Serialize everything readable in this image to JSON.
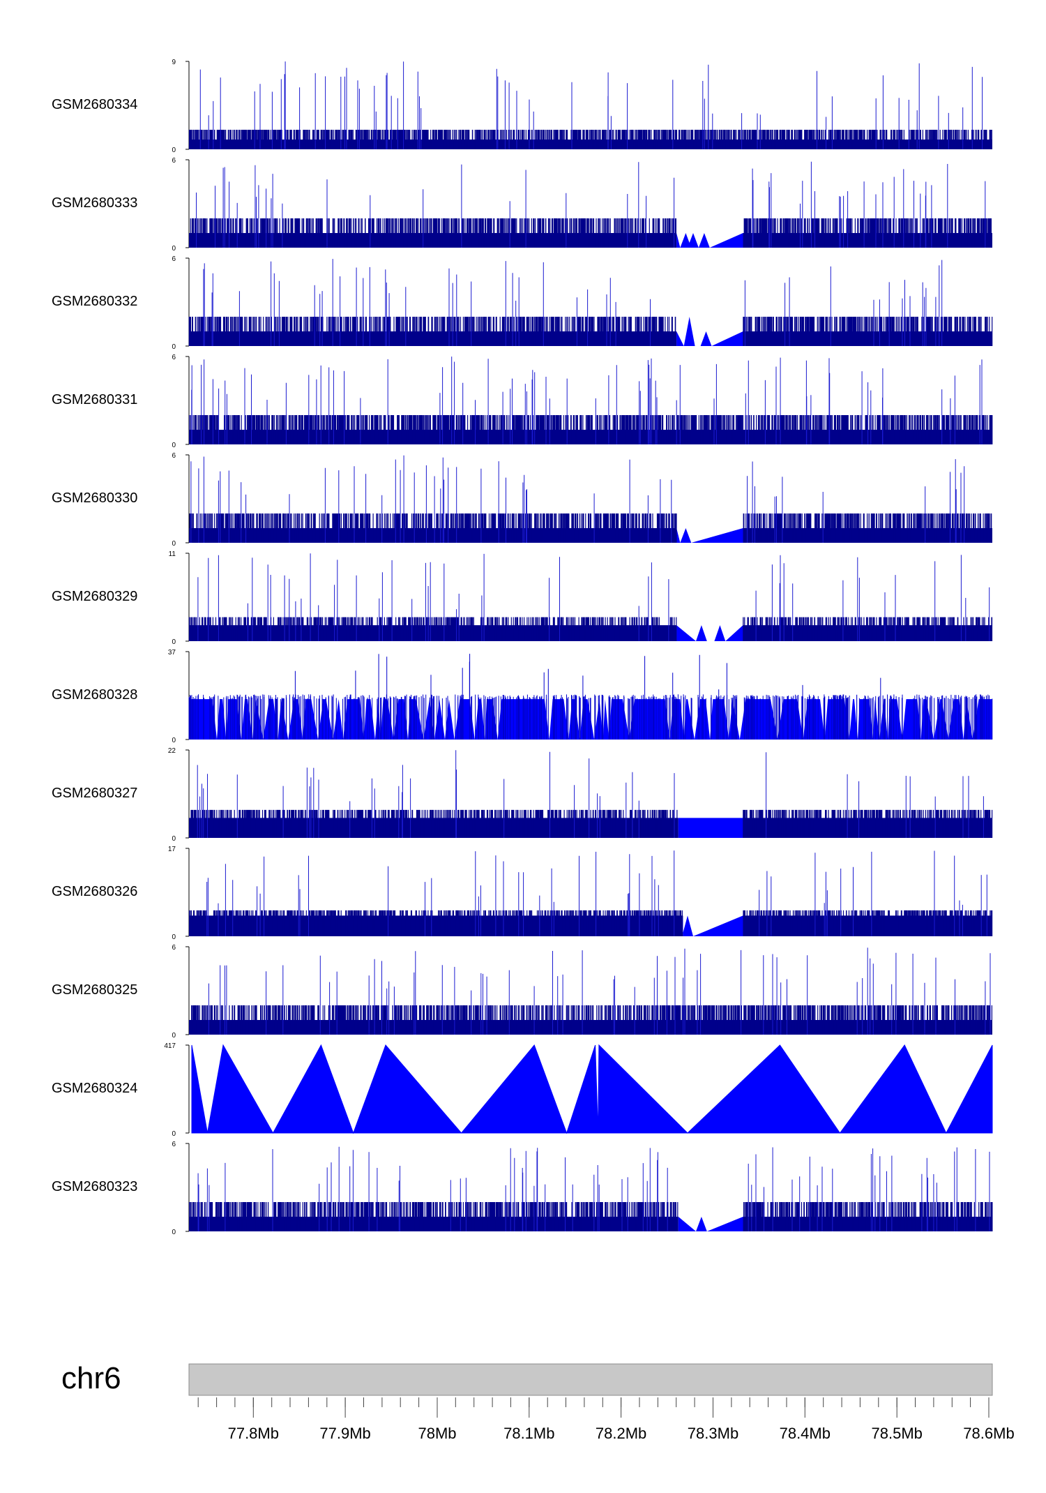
{
  "chart_data": {
    "type": "area",
    "title": "",
    "chromosome": "chr6",
    "x_unit": "Mb",
    "xlim": [
      77.73,
      78.6
    ],
    "x_ticks": [
      {
        "value": 77.8,
        "label": "77.8Mb"
      },
      {
        "value": 77.9,
        "label": "77.9Mb"
      },
      {
        "value": 78.0,
        "label": "78Mb"
      },
      {
        "value": 78.1,
        "label": "78.1Mb"
      },
      {
        "value": 78.2,
        "label": "78.2Mb"
      },
      {
        "value": 78.3,
        "label": "78.3Mb"
      },
      {
        "value": 78.4,
        "label": "78.4Mb"
      },
      {
        "value": 78.5,
        "label": "78.5Mb"
      },
      {
        "value": 78.6,
        "label": "78.6Mb"
      }
    ],
    "minor_tick_step": 0.02,
    "series": [
      {
        "name": "GSM2680334",
        "ylim": [
          0,
          9
        ],
        "y_labels": [
          "9",
          "0"
        ],
        "style": "dense",
        "base": 1,
        "mid": 2,
        "frac_mid": 0.55,
        "gaps": []
      },
      {
        "name": "GSM2680333",
        "ylim": [
          0,
          6
        ],
        "y_labels": [
          "6",
          "0"
        ],
        "style": "dense",
        "base": 1,
        "mid": 2,
        "frac_mid": 0.5,
        "gaps": [
          {
            "start": 78.258,
            "end": 78.33,
            "peaks": [
              [
                78.268,
                1
              ],
              [
                78.276,
                1
              ],
              [
                78.288,
                1
              ]
            ]
          }
        ]
      },
      {
        "name": "GSM2680332",
        "ylim": [
          0,
          6
        ],
        "y_labels": [
          "6",
          "0"
        ],
        "style": "dense",
        "base": 1,
        "mid": 2,
        "frac_mid": 0.5,
        "gaps": [
          {
            "start": 78.258,
            "end": 78.33,
            "peaks": [
              [
                78.272,
                2
              ],
              [
                78.29,
                1
              ]
            ]
          }
        ]
      },
      {
        "name": "GSM2680331",
        "ylim": [
          0,
          6
        ],
        "y_labels": [
          "6",
          "0"
        ],
        "style": "dense",
        "base": 1,
        "mid": 2,
        "frac_mid": 0.55,
        "gaps": []
      },
      {
        "name": "GSM2680330",
        "ylim": [
          0,
          6
        ],
        "y_labels": [
          "6",
          "0"
        ],
        "style": "dense",
        "base": 1,
        "mid": 2,
        "frac_mid": 0.5,
        "gaps": [
          {
            "start": 78.258,
            "end": 78.33,
            "peaks": [
              [
                78.268,
                1
              ]
            ]
          }
        ]
      },
      {
        "name": "GSM2680329",
        "ylim": [
          0,
          11
        ],
        "y_labels": [
          "11",
          "0"
        ],
        "style": "dense",
        "base": 2,
        "mid": 3,
        "frac_mid": 0.4,
        "gaps": [
          {
            "start": 78.258,
            "end": 78.33,
            "peaks": [
              [
                78.285,
                2
              ],
              [
                78.305,
                2
              ]
            ]
          }
        ]
      },
      {
        "name": "GSM2680328",
        "ylim": [
          0,
          37
        ],
        "y_labels": [
          "37",
          "0"
        ],
        "style": "sparse",
        "base": 17,
        "mid": 17,
        "frac_mid": 0.0,
        "gaps": []
      },
      {
        "name": "GSM2680327",
        "ylim": [
          0,
          22
        ],
        "y_labels": [
          "22",
          "0"
        ],
        "style": "dense",
        "base": 5,
        "mid": 7,
        "frac_mid": 0.45,
        "gaps": [
          {
            "start": 78.26,
            "end": 78.33,
            "peaks": []
          }
        ]
      },
      {
        "name": "GSM2680326",
        "ylim": [
          0,
          17
        ],
        "y_labels": [
          "17",
          "0"
        ],
        "style": "dense",
        "base": 4,
        "mid": 5,
        "frac_mid": 0.45,
        "gaps": [
          {
            "start": 78.265,
            "end": 78.33,
            "peaks": [
              [
                78.27,
                4
              ]
            ]
          }
        ]
      },
      {
        "name": "GSM2680325",
        "ylim": [
          0,
          6
        ],
        "y_labels": [
          "6",
          "0"
        ],
        "style": "dense",
        "base": 1,
        "mid": 2,
        "frac_mid": 0.5,
        "gaps": []
      },
      {
        "name": "GSM2680324",
        "ylim": [
          0,
          417
        ],
        "y_labels": [
          "417",
          "0"
        ],
        "style": "peaks",
        "points": [
          [
            77.733,
            417
          ],
          [
            77.75,
            0
          ],
          [
            77.767,
            417
          ],
          [
            77.821,
            0
          ],
          [
            77.873,
            417
          ],
          [
            77.908,
            0
          ],
          [
            77.943,
            417
          ],
          [
            78.025,
            0
          ],
          [
            78.104,
            417
          ],
          [
            78.139,
            0
          ],
          [
            78.17,
            417
          ],
          [
            78.173,
            0
          ],
          [
            78.174,
            417
          ],
          [
            78.27,
            0
          ],
          [
            78.37,
            417
          ],
          [
            78.435,
            0
          ],
          [
            78.505,
            417
          ],
          [
            78.55,
            0
          ],
          [
            78.6,
            417
          ]
        ]
      },
      {
        "name": "GSM2680323",
        "ylim": [
          0,
          6
        ],
        "y_labels": [
          "6",
          "0"
        ],
        "style": "dense",
        "base": 1,
        "mid": 2,
        "frac_mid": 0.5,
        "gaps": [
          {
            "start": 78.26,
            "end": 78.33,
            "peaks": [
              [
                78.285,
                1
              ]
            ]
          }
        ]
      }
    ]
  }
}
